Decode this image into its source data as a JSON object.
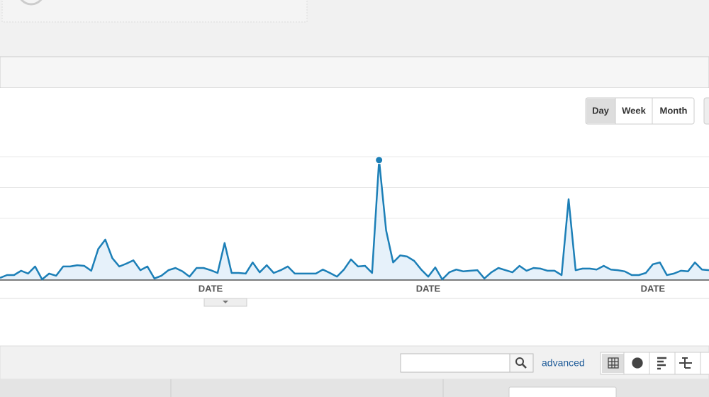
{
  "chart_data": {
    "type": "line",
    "categories": [
      null,
      null,
      null,
      null,
      null,
      null,
      null,
      null,
      null,
      null,
      null,
      null,
      null,
      null,
      null,
      null,
      null,
      null,
      null,
      null,
      null,
      null,
      null,
      null,
      null,
      null,
      null,
      null,
      null,
      null,
      "DATE",
      null,
      null,
      null,
      null,
      null,
      null,
      null,
      null,
      null,
      null,
      null,
      null,
      null,
      null,
      null,
      null,
      null,
      null,
      null,
      null,
      null,
      null,
      null,
      null,
      null,
      null,
      null,
      null,
      null,
      null,
      "DATE",
      null,
      null,
      null,
      null,
      null,
      null,
      null,
      null,
      null,
      null,
      null,
      null,
      null,
      null,
      null,
      null,
      null,
      null,
      null,
      null,
      null,
      null,
      null,
      null,
      null,
      null,
      null,
      null,
      null,
      null,
      null,
      "DATE",
      null,
      null,
      null,
      null,
      null,
      null,
      null,
      null
    ],
    "values": [
      0.07,
      0.16,
      0.16,
      0.3,
      0.21,
      0.44,
      0.02,
      0.21,
      0.14,
      0.44,
      0.44,
      0.48,
      0.46,
      0.3,
      1.01,
      1.31,
      0.71,
      0.44,
      0.53,
      0.64,
      0.32,
      0.44,
      0.05,
      0.14,
      0.32,
      0.39,
      0.28,
      0.11,
      0.39,
      0.39,
      0.32,
      0.23,
      1.2,
      0.23,
      0.23,
      0.21,
      0.57,
      0.25,
      0.48,
      0.23,
      0.32,
      0.44,
      0.21,
      0.21,
      0.21,
      0.21,
      0.34,
      0.23,
      0.11,
      0.34,
      0.67,
      0.44,
      0.46,
      0.23,
      3.89,
      1.61,
      0.57,
      0.8,
      0.76,
      0.62,
      0.34,
      0.11,
      0.41,
      0.02,
      0.25,
      0.34,
      0.28,
      0.3,
      0.32,
      0.05,
      0.25,
      0.39,
      0.32,
      0.25,
      0.46,
      0.3,
      0.39,
      0.37,
      0.3,
      0.3,
      0.16,
      2.62,
      0.32,
      0.37,
      0.37,
      0.34,
      0.46,
      0.34,
      0.32,
      0.28,
      0.16,
      0.16,
      0.23,
      0.51,
      0.57,
      0.16,
      0.21,
      0.3,
      0.28,
      0.57,
      0.34,
      0.32
    ],
    "color": "#1c7fb7",
    "ylim": [
      0,
      4
    ],
    "yticks": [
      2,
      3,
      4
    ],
    "grid": true
  },
  "toolbar": {
    "period_buttons": [
      "Day",
      "Week",
      "Month"
    ],
    "search_link": "advanced"
  }
}
